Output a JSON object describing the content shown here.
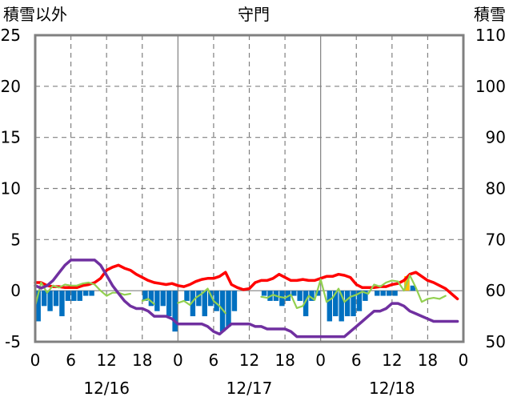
{
  "chart_data": {
    "type": "bar+line",
    "title": "守門",
    "left_axis_label": "積雪以外",
    "right_axis_label": "積雪",
    "left_ylim": [
      -5,
      25
    ],
    "left_yticks": [
      "25",
      "20",
      "15",
      "10",
      "5",
      "0",
      "-5"
    ],
    "right_ylim": [
      50,
      110
    ],
    "right_yticks": [
      "110",
      "100",
      "90",
      "80",
      "70",
      "60",
      "50"
    ],
    "xlim": [
      0,
      72
    ],
    "xticks": [
      {
        "hour": 0,
        "label": "0"
      },
      {
        "hour": 6,
        "label": "6"
      },
      {
        "hour": 12,
        "label": "12"
      },
      {
        "hour": 18,
        "label": "18"
      },
      {
        "hour": 24,
        "label": "0"
      },
      {
        "hour": 30,
        "label": "6"
      },
      {
        "hour": 36,
        "label": "12"
      },
      {
        "hour": 42,
        "label": "18"
      },
      {
        "hour": 48,
        "label": "0"
      },
      {
        "hour": 54,
        "label": "6"
      },
      {
        "hour": 60,
        "label": "12"
      },
      {
        "hour": 66,
        "label": "18"
      },
      {
        "hour": 72,
        "label": "0"
      }
    ],
    "date_labels": [
      {
        "hour": 12,
        "label": "12/16"
      },
      {
        "hour": 36,
        "label": "12/17"
      },
      {
        "hour": 60,
        "label": "12/18"
      }
    ],
    "grid": true,
    "colors": {
      "temperature": "#ff0000",
      "wind": "#92d050",
      "snow_depth": "#7030a0",
      "precip_bar": "#0070c0",
      "highlight_bar": "#ffc000",
      "frame": "#808080",
      "grid": "#808080"
    },
    "bars": [
      {
        "t": 0,
        "v": -3.0
      },
      {
        "t": 1,
        "v": -1.5
      },
      {
        "t": 2,
        "v": -2.0
      },
      {
        "t": 3,
        "v": -1.5
      },
      {
        "t": 4,
        "v": -2.5
      },
      {
        "t": 5,
        "v": -1.0
      },
      {
        "t": 6,
        "v": -1.0
      },
      {
        "t": 7,
        "v": -1.0
      },
      {
        "t": 8,
        "v": -0.5
      },
      {
        "t": 9,
        "v": -0.5
      },
      {
        "t": 18,
        "v": -1.0
      },
      {
        "t": 19,
        "v": -1.5
      },
      {
        "t": 20,
        "v": -2.0
      },
      {
        "t": 21,
        "v": -1.5
      },
      {
        "t": 22,
        "v": -2.5
      },
      {
        "t": 23,
        "v": -4.0
      },
      {
        "t": 25,
        "v": -1.0
      },
      {
        "t": 26,
        "v": -2.5
      },
      {
        "t": 27,
        "v": -1.5
      },
      {
        "t": 28,
        "v": -2.5
      },
      {
        "t": 29,
        "v": -1.5
      },
      {
        "t": 30,
        "v": -2.0
      },
      {
        "t": 31,
        "v": -4.0
      },
      {
        "t": 32,
        "v": -3.5
      },
      {
        "t": 33,
        "v": -2.0
      },
      {
        "t": 38,
        "v": -0.5
      },
      {
        "t": 39,
        "v": -1.0
      },
      {
        "t": 40,
        "v": -1.0
      },
      {
        "t": 41,
        "v": -1.5
      },
      {
        "t": 42,
        "v": -1.0
      },
      {
        "t": 43,
        "v": -0.5
      },
      {
        "t": 44,
        "v": -1.0
      },
      {
        "t": 45,
        "v": -2.5
      },
      {
        "t": 46,
        "v": -1.0
      },
      {
        "t": 47,
        "v": -0.5
      },
      {
        "t": 49,
        "v": -3.0
      },
      {
        "t": 50,
        "v": -2.5
      },
      {
        "t": 51,
        "v": -3.0
      },
      {
        "t": 52,
        "v": -2.5
      },
      {
        "t": 53,
        "v": -2.5
      },
      {
        "t": 54,
        "v": -2.0
      },
      {
        "t": 55,
        "v": -1.0
      },
      {
        "t": 57,
        "v": -0.5
      },
      {
        "t": 58,
        "v": -0.5
      },
      {
        "t": 59,
        "v": -0.5
      },
      {
        "t": 60,
        "v": -0.5
      },
      {
        "t": 62,
        "v": 1.0
      },
      {
        "t": 63,
        "v": 0.5
      }
    ],
    "highlight_bars": [
      {
        "t": 62,
        "v": 0.8
      }
    ],
    "series": [
      {
        "color": "#ff0000",
        "axis": "left",
        "x": [
          0,
          1,
          2,
          3,
          4,
          5,
          6,
          7,
          8,
          9,
          10,
          11,
          12,
          13,
          14,
          15,
          16,
          17,
          18,
          19,
          20,
          21,
          22,
          23,
          24,
          25,
          26,
          27,
          28,
          29,
          30,
          31,
          32,
          33,
          34,
          35,
          36,
          37,
          38,
          39,
          40,
          41,
          42,
          43,
          44,
          45,
          46,
          47,
          48,
          49,
          50,
          51,
          52,
          53,
          54,
          55,
          56,
          57,
          58,
          59,
          60,
          61,
          62,
          63,
          64,
          65,
          66,
          67,
          68,
          69,
          70,
          71
        ],
        "y": [
          0.8,
          0.8,
          0.5,
          0.4,
          0.4,
          0.3,
          0.3,
          0.3,
          0.5,
          0.6,
          0.8,
          1.2,
          2.0,
          2.3,
          2.5,
          2.2,
          2.0,
          1.6,
          1.3,
          1.0,
          0.8,
          0.7,
          0.6,
          0.7,
          0.5,
          0.4,
          0.6,
          0.9,
          1.1,
          1.2,
          1.2,
          1.4,
          1.8,
          0.6,
          0.3,
          0.1,
          0.2,
          0.8,
          1.0,
          1.0,
          1.2,
          1.6,
          1.3,
          1.0,
          1.0,
          1.1,
          1.0,
          1.0,
          1.2,
          1.4,
          1.4,
          1.6,
          1.5,
          1.3,
          0.6,
          0.3,
          0.3,
          0.3,
          0.4,
          0.4,
          0.6,
          0.7,
          1.0,
          1.6,
          1.8,
          1.4,
          1.0,
          0.8,
          0.5,
          0.2,
          -0.3,
          -0.8
        ]
      },
      {
        "color": "#92d050",
        "axis": "left",
        "x": [
          0,
          1,
          2,
          3,
          4,
          5,
          6,
          7,
          8,
          9,
          10,
          11,
          12,
          13,
          14,
          15,
          16,
          17,
          18,
          19,
          20,
          21,
          22,
          23,
          24,
          25,
          26,
          27,
          28,
          29,
          30,
          31,
          32,
          33,
          34,
          35,
          36,
          37,
          38,
          39,
          40,
          41,
          42,
          43,
          44,
          45,
          46,
          47,
          48,
          49,
          50,
          51,
          52,
          53,
          54,
          55,
          56,
          57,
          58,
          59,
          60,
          61,
          62,
          63,
          64,
          65,
          66,
          67,
          68,
          69
        ],
        "y": [
          -1.5,
          0.8,
          -0.2,
          0.5,
          0.3,
          0.6,
          0.5,
          0.5,
          0.7,
          0.8,
          0.6,
          0.0,
          -0.5,
          -0.2,
          -0.2,
          -0.4,
          -0.3,
          null,
          -1.0,
          -0.8,
          -1.3,
          null,
          null,
          null,
          -1.2,
          -1.0,
          -1.4,
          -0.7,
          -0.3,
          0.2,
          -1.0,
          -1.5,
          -2.2,
          null,
          null,
          null,
          null,
          null,
          -0.6,
          -0.7,
          -0.4,
          -0.6,
          -0.7,
          -0.4,
          -1.7,
          -1.5,
          -0.5,
          -0.9,
          1.1,
          -1.1,
          -0.7,
          0.2,
          -1.1,
          -0.6,
          -0.4,
          -0.1,
          -0.3,
          0.6,
          0.4,
          0.8,
          1.0,
          0.9,
          0.0,
          1.5,
          0.3,
          -1.1,
          -0.8,
          -0.7,
          -0.8,
          -0.5
        ]
      },
      {
        "color": "#7030a0",
        "axis": "right",
        "x": [
          0,
          1,
          2,
          3,
          4,
          5,
          6,
          7,
          8,
          9,
          10,
          11,
          12,
          13,
          14,
          15,
          16,
          17,
          18,
          19,
          20,
          21,
          22,
          23,
          24,
          25,
          26,
          27,
          28,
          29,
          30,
          31,
          32,
          33,
          34,
          35,
          36,
          37,
          38,
          39,
          40,
          41,
          42,
          43,
          44,
          45,
          46,
          47,
          48,
          49,
          50,
          51,
          52,
          53,
          54,
          55,
          56,
          57,
          58,
          59,
          60,
          61,
          62,
          63,
          64,
          65,
          66,
          67,
          68,
          69,
          70,
          71
        ],
        "y": [
          61,
          60.5,
          61,
          62,
          63.5,
          65,
          66,
          66,
          66,
          66,
          66,
          65,
          63,
          61,
          59.5,
          58,
          57,
          56.5,
          56.5,
          56,
          55,
          55,
          55,
          54.5,
          53.5,
          53.5,
          53.5,
          53.5,
          53.5,
          53,
          52,
          51.5,
          52.5,
          53.5,
          53.5,
          53.5,
          53.5,
          53,
          53,
          52.5,
          52.5,
          52.5,
          52.5,
          52,
          51,
          51,
          51,
          51,
          51,
          51,
          51,
          51,
          51,
          52,
          53,
          54,
          55,
          56,
          56,
          56.5,
          57.5,
          57.5,
          57,
          56,
          55.5,
          55,
          54.5,
          54,
          54,
          54,
          54,
          54
        ]
      }
    ]
  }
}
